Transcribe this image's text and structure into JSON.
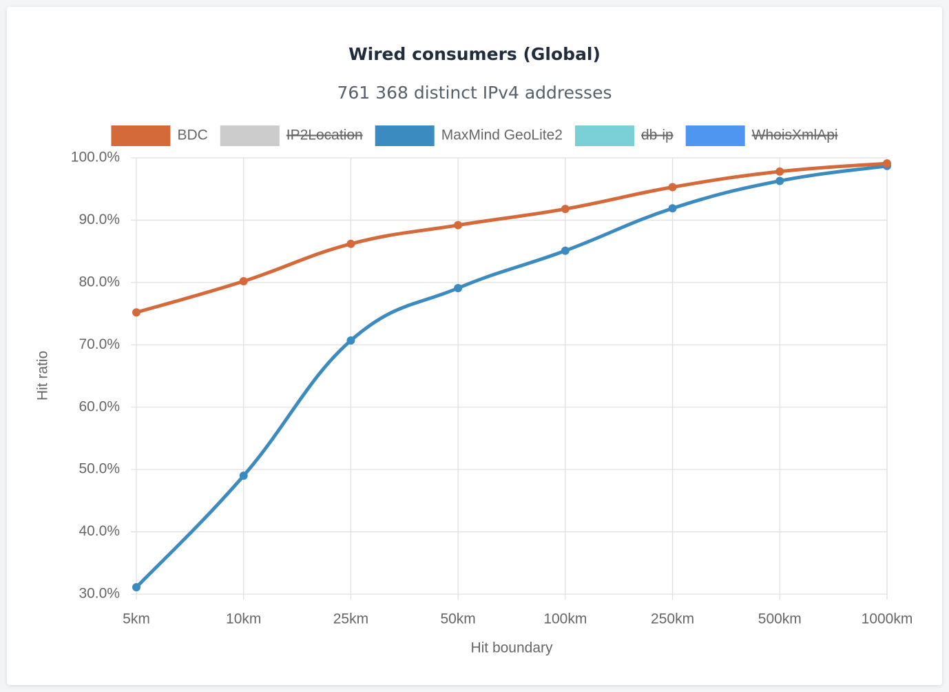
{
  "chart_data": {
    "type": "line",
    "title": "Wired consumers (Global)",
    "subtitle": "761 368 distinct IPv4 addresses",
    "x_label": "Hit boundary",
    "y_label": "Hit ratio",
    "categories": [
      "5km",
      "10km",
      "25km",
      "50km",
      "100km",
      "250km",
      "500km",
      "1000km"
    ],
    "series": [
      {
        "name": "BDC",
        "color": "#d4693a",
        "values": [
          75.2,
          80.2,
          86.2,
          89.2,
          91.8,
          95.3,
          97.8,
          99.1
        ]
      },
      {
        "name": "IP2Location",
        "color": "#cccccc",
        "hidden": true
      },
      {
        "name": "MaxMind GeoLite2",
        "color": "#3b8bc0",
        "values": [
          31.1,
          49.0,
          70.7,
          79.1,
          85.1,
          91.9,
          96.3,
          98.7
        ]
      },
      {
        "name": "db-ip",
        "color": "#7ad0d6",
        "hidden": true
      },
      {
        "name": "WhoisXmlApi",
        "color": "#4e96f0",
        "hidden": true
      }
    ],
    "ylim": [
      30,
      100
    ],
    "yticks": [
      {
        "value": 30,
        "label": "30.0%"
      },
      {
        "value": 40,
        "label": "40.0%"
      },
      {
        "value": 50,
        "label": "50.0%"
      },
      {
        "value": 60,
        "label": "60.0%"
      },
      {
        "value": 70,
        "label": "70.0%"
      },
      {
        "value": 80,
        "label": "80.0%"
      },
      {
        "value": 90,
        "label": "90.0%"
      },
      {
        "value": 100,
        "label": "100.0%"
      }
    ],
    "grid": true,
    "legend": "top"
  }
}
